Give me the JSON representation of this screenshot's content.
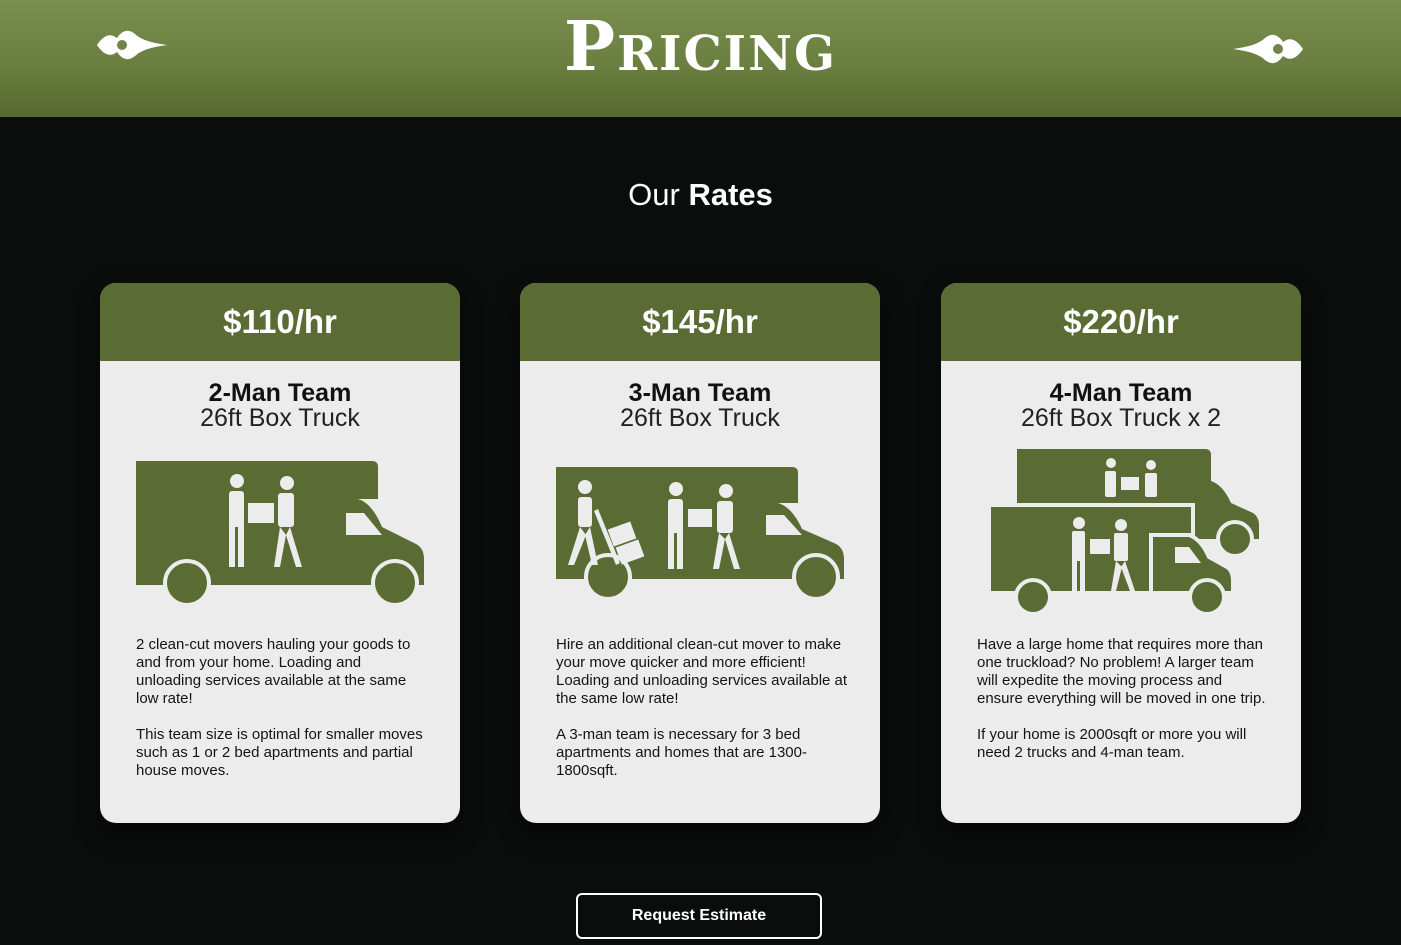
{
  "banner": {
    "title": "Pricing"
  },
  "section": {
    "heading_light": "Our",
    "heading_bold": "Rates"
  },
  "colors": {
    "brand_green": "#5a6b33",
    "banner_green": "#6f8446",
    "card_bg": "#ececec",
    "page_bg": "#0b0c0c"
  },
  "cards": [
    {
      "price": "$110/hr",
      "team": "2-Man Team",
      "truck": "26ft Box Truck",
      "icon": "box-truck-two-movers-icon",
      "paragraphs": [
        "2 clean-cut movers hauling your goods to and from your home. Loading and unloading services available at the same low rate!",
        "This team size is optimal for smaller moves such as 1 or 2 bed apartments and partial house moves."
      ]
    },
    {
      "price": "$145/hr",
      "team": "3-Man Team",
      "truck": "26ft Box Truck",
      "icon": "box-truck-three-movers-icon",
      "paragraphs": [
        "Hire an additional clean-cut mover to make your move quicker and more efficient! Loading and unloading services available at the same low rate!",
        "A 3-man team is necessary for 3 bed apartments and homes that are 1300-1800sqft."
      ]
    },
    {
      "price": "$220/hr",
      "team": "4-Man Team",
      "truck": "26ft Box Truck x 2",
      "icon": "two-box-trucks-icon",
      "paragraphs": [
        "Have a large home that requires more than one truckload? No problem! A larger team will expedite the moving process and ensure everything will be moved in one trip.",
        "If your home is 2000sqft or more you will need 2 trucks and 4-man team."
      ]
    }
  ],
  "cta": {
    "label": "Request Estimate"
  }
}
